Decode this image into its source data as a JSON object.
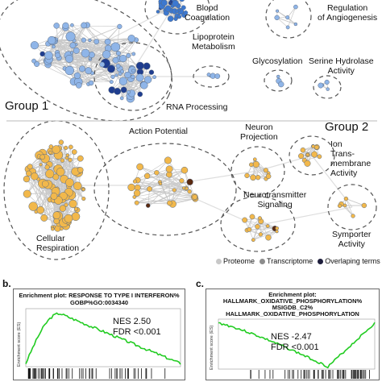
{
  "panel_a": {
    "groups": [
      {
        "label": "Group 1"
      },
      {
        "label": "Group 2"
      }
    ],
    "cluster_labels": [
      {
        "text": "Blood\nCoagulation"
      },
      {
        "text": "Regulation\nof Angiogenesis"
      },
      {
        "text": "Lipoprotein\nMetabolism"
      },
      {
        "text": "Glycosylation"
      },
      {
        "text": "Serine Hydrolase\nActivity"
      },
      {
        "text": "RNA Processing"
      },
      {
        "text": "Action Potential"
      },
      {
        "text": "Neuron\nProjection"
      },
      {
        "text": "Ion\nTrans-\nmembrane\nActivity"
      },
      {
        "text": "Neurotransmitter\nSignaling"
      },
      {
        "text": "Cellular\nRespiration"
      },
      {
        "text": "Symporter\nActivity"
      }
    ],
    "legend": [
      {
        "label": "Proteome",
        "color": "#c8c8c8"
      },
      {
        "label": "Transcriptome",
        "color": "#8c8c8c"
      },
      {
        "label": "Overlaping terms",
        "color": "#1e1e3c"
      }
    ],
    "colors": {
      "group1_node": "#8fb5e8",
      "group1_dark": "#1f3d8f",
      "group2_node": "#f2b84b",
      "group2_dark": "#5a2a10",
      "edge": "#c9c9c9"
    }
  },
  "panel_b": {
    "letter": "b.",
    "title_line1": "Enrichment plot: RESPONSE TO TYPE I INTERFERON%",
    "title_line2": "GOBP%GO:0034340",
    "ylabel": "Enrichment score (ES)",
    "nes": "NES 2.50",
    "fdr": "FDR <0.001",
    "curve_color": "#22cc22"
  },
  "panel_c": {
    "letter": "c.",
    "title_line1": "Enrichment plot:",
    "title_line2": "HALLMARK_OXIDATIVE_PHOSPHORYLATION%",
    "title_line3": "MSIGDB_C2%",
    "title_line4": "HALLMARK_OXIDATIVE_PHOSPHORYLATION",
    "ylabel": "Enrichment score (ES)",
    "nes": "NES -2.47",
    "fdr": "FDR <0.001",
    "curve_color": "#22cc22"
  }
}
